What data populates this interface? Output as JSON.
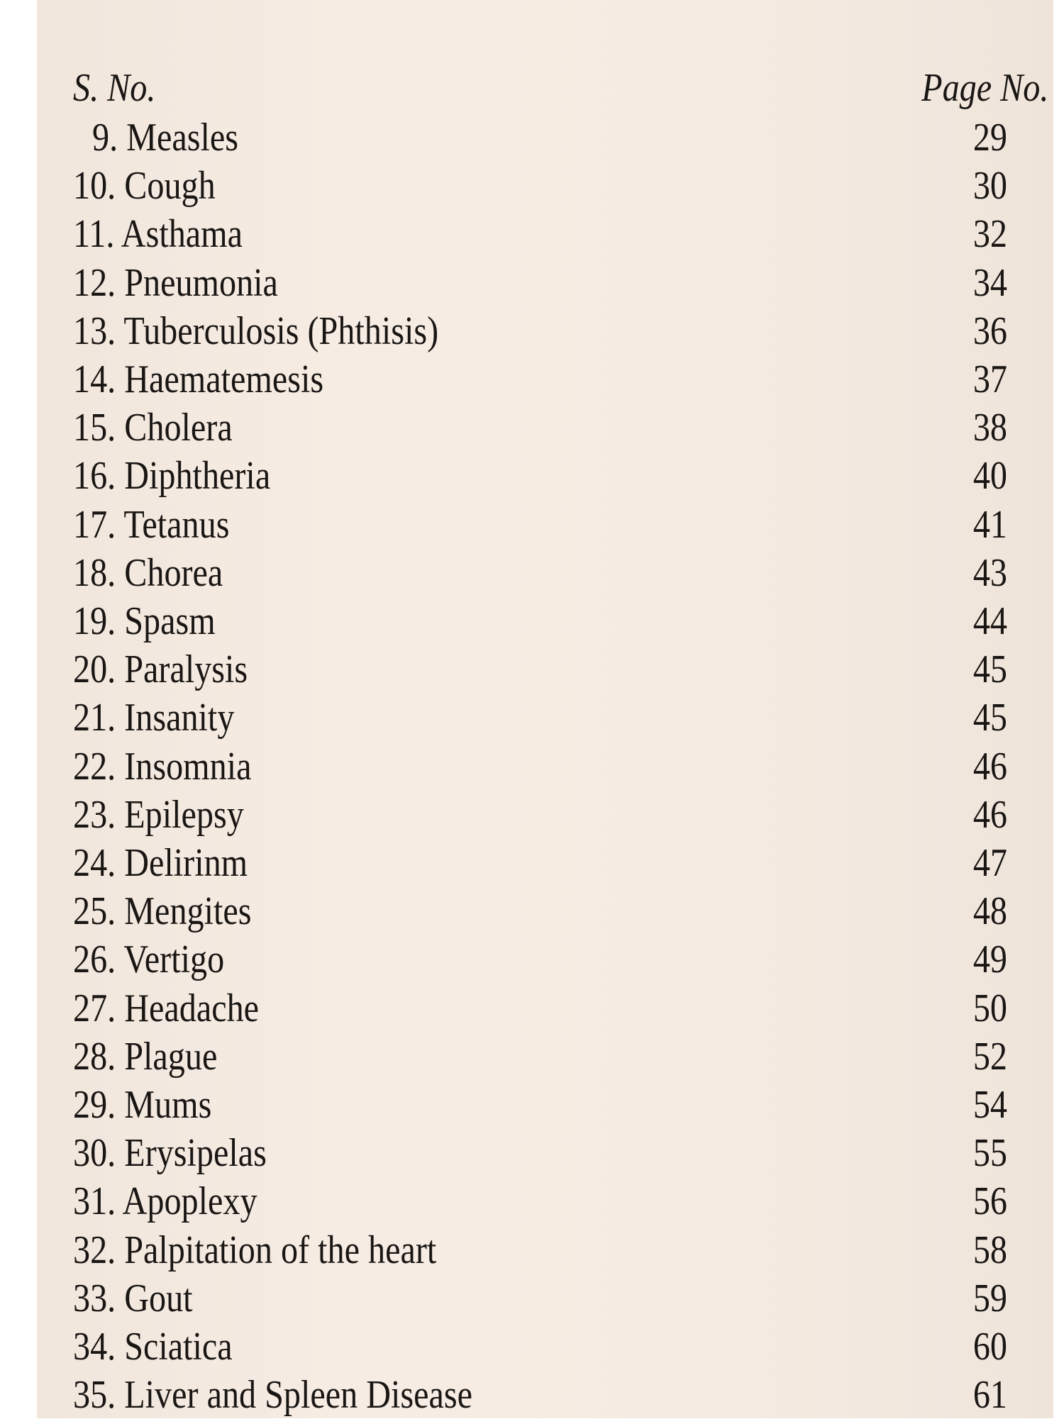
{
  "header": {
    "serial_label": "S. No.",
    "page_label": "Page No."
  },
  "entries": [
    {
      "text": "9. Measles",
      "page": "29"
    },
    {
      "text": "10. Cough",
      "page": "30"
    },
    {
      "text": "11. Asthama",
      "page": "32"
    },
    {
      "text": "12. Pneumonia",
      "page": "34"
    },
    {
      "text": "13. Tuberculosis (Phthisis)",
      "page": "36"
    },
    {
      "text": "14. Haematemesis",
      "page": "37"
    },
    {
      "text": "15. Cholera",
      "page": "38"
    },
    {
      "text": "16. Diphtheria",
      "page": "40"
    },
    {
      "text": "17. Tetanus",
      "page": "41"
    },
    {
      "text": "18. Chorea",
      "page": "43"
    },
    {
      "text": "19. Spasm",
      "page": "44"
    },
    {
      "text": "20. Paralysis",
      "page": "45"
    },
    {
      "text": "21. Insanity",
      "page": "45"
    },
    {
      "text": "22. Insomnia",
      "page": "46"
    },
    {
      "text": "23. Epilepsy",
      "page": "46"
    },
    {
      "text": "24. Delirinm",
      "page": "47"
    },
    {
      "text": "25. Mengites",
      "page": "48"
    },
    {
      "text": "26. Vertigo",
      "page": "49"
    },
    {
      "text": "27. Headache",
      "page": "50"
    },
    {
      "text": "28. Plague",
      "page": "52"
    },
    {
      "text": "29. Mums",
      "page": "54"
    },
    {
      "text": "30. Erysipelas",
      "page": "55"
    },
    {
      "text": "31. Apoplexy",
      "page": "56"
    },
    {
      "text": "32. Palpitation of the heart",
      "page": "58"
    },
    {
      "text": "33. Gout",
      "page": "59"
    },
    {
      "text": "34. Sciatica",
      "page": "60"
    },
    {
      "text": "35. Liver and Spleen Disease",
      "page": "61"
    }
  ]
}
